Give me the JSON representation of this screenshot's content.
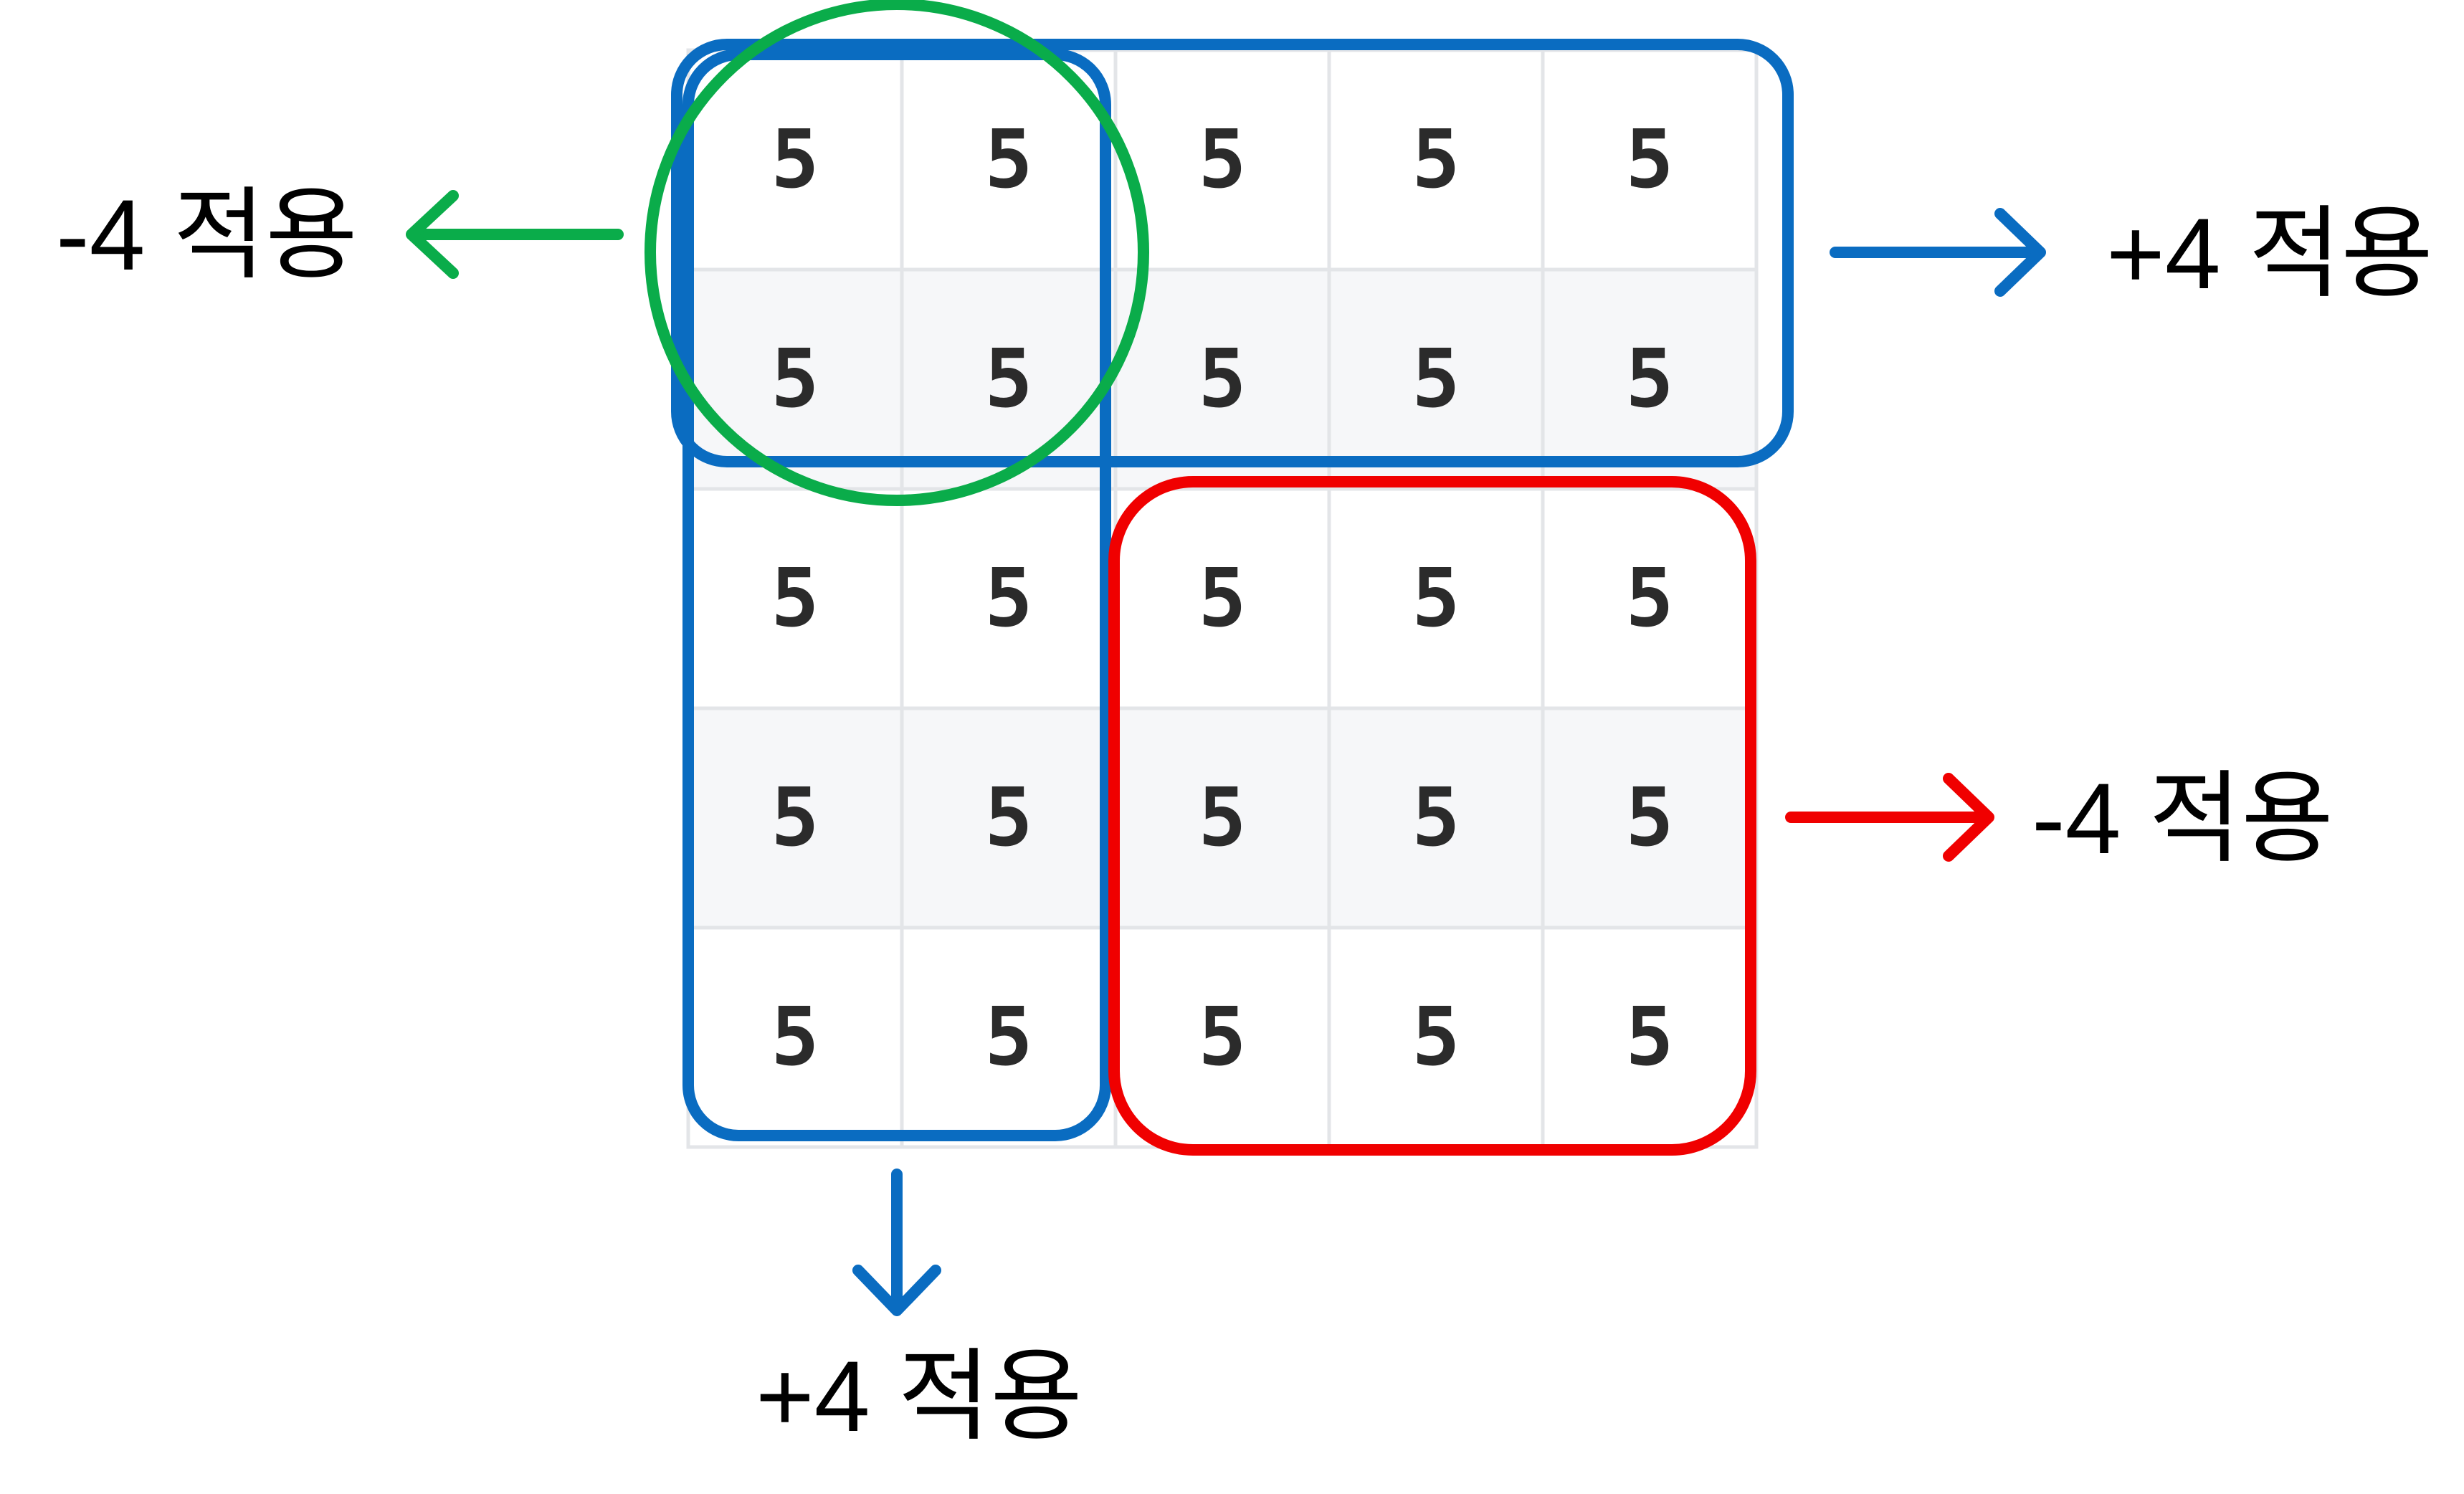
{
  "grid": {
    "rows": 5,
    "cols": 5,
    "values": [
      [
        "5",
        "5",
        "5",
        "5",
        "5"
      ],
      [
        "5",
        "5",
        "5",
        "5",
        "5"
      ],
      [
        "5",
        "5",
        "5",
        "5",
        "5"
      ],
      [
        "5",
        "5",
        "5",
        "5",
        "5"
      ],
      [
        "5",
        "5",
        "5",
        "5",
        "5"
      ]
    ]
  },
  "colors": {
    "green": "#0aac4a",
    "blue": "#0a6cc1",
    "red": "#f00000",
    "grid_line": "#e3e5e8",
    "row_shade": "#f6f7f9"
  },
  "labels": {
    "green_left": "-4 적용",
    "blue_right": "+4 적용",
    "red_right": "-4 적용",
    "blue_bottom": "+4 적용"
  }
}
